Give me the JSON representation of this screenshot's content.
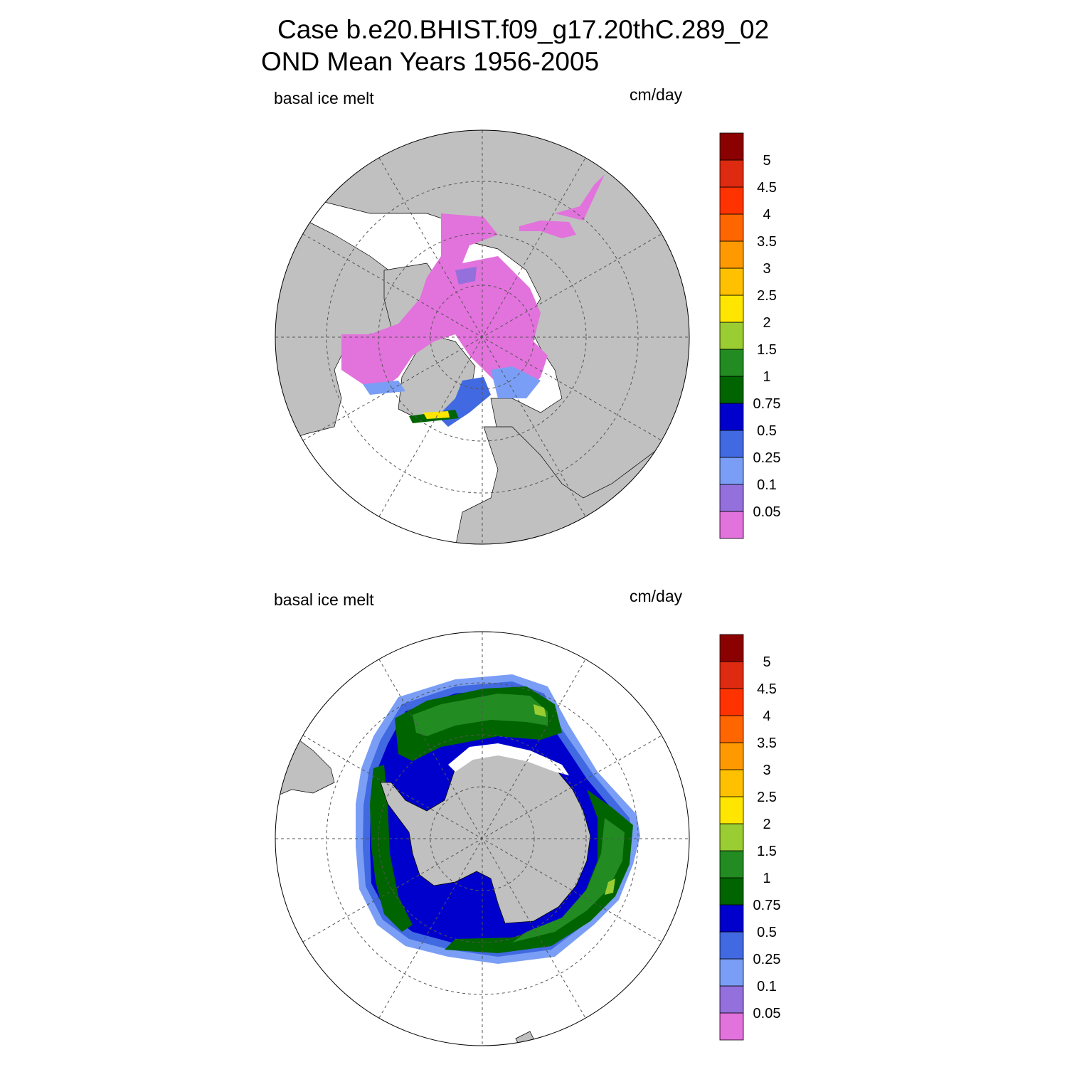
{
  "title": {
    "line1": "Case b.e20.BHIST.f09_g17.20thC.289_02",
    "line2": "OND Mean   Years 1956-2005"
  },
  "panels": [
    {
      "id": "north",
      "variable": "basal ice melt",
      "units": "cm/day"
    },
    {
      "id": "south",
      "variable": "basal ice melt",
      "units": "cm/day"
    }
  ],
  "colorbar": {
    "levels": [
      "0.05",
      "0.1",
      "0.25",
      "0.5",
      "0.75",
      "1",
      "1.5",
      "2",
      "2.5",
      "3",
      "3.5",
      "4",
      "4.5",
      "5"
    ],
    "colors": [
      "#e272dc",
      "#9370db",
      "#7a9ef5",
      "#4169e1",
      "#0000cd",
      "#006400",
      "#228b22",
      "#9acd32",
      "#ffe600",
      "#ffc000",
      "#ff9900",
      "#ff6600",
      "#ff3300",
      "#dd2a10",
      "#8b0000"
    ]
  },
  "map_colors": {
    "land": "#c0c0c0",
    "ocean": "#ffffff"
  }
}
